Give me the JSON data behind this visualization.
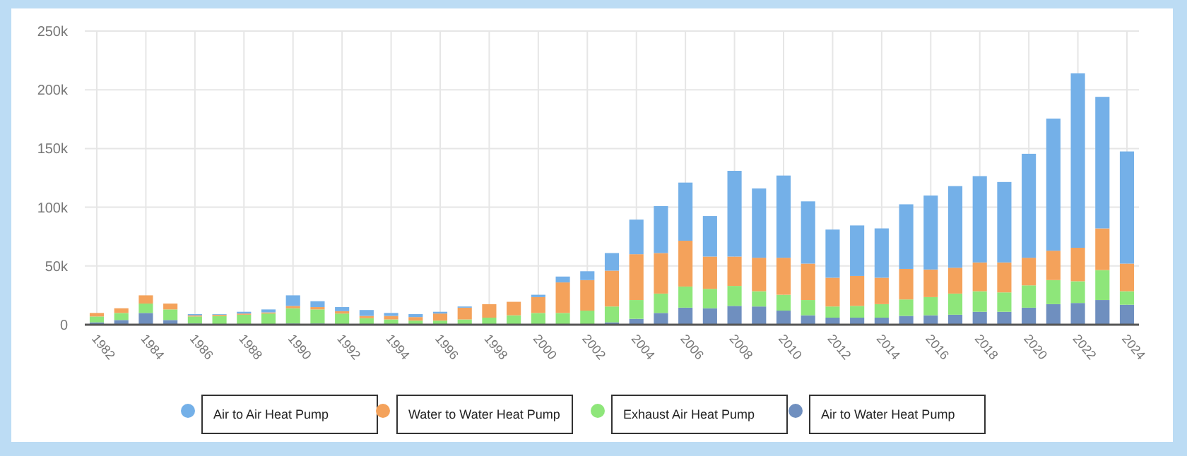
{
  "chart_data": {
    "type": "bar",
    "stacked": true,
    "categories": [
      "1982",
      null,
      "1984",
      null,
      "1986",
      null,
      "1988",
      null,
      "1990",
      null,
      "1992",
      null,
      "1994",
      null,
      "1996",
      null,
      "1998",
      null,
      "2000",
      null,
      "2002",
      null,
      "2004",
      null,
      "2006",
      null,
      "2008",
      null,
      "2010",
      null,
      "2012",
      null,
      "2014",
      null,
      "2016",
      null,
      "2018",
      null,
      "2020",
      null,
      "2022",
      null,
      "2024"
    ],
    "series": [
      {
        "name": "Air to Water Heat Pump",
        "color": "#6f8fbf",
        "values": [
          2000,
          4000,
          10000,
          4000,
          1000,
          500,
          500,
          500,
          1000,
          1000,
          500,
          500,
          500,
          500,
          500,
          500,
          500,
          500,
          500,
          500,
          500,
          2000,
          5000,
          10000,
          14500,
          14000,
          16000,
          15500,
          12000,
          8000,
          6000,
          6000,
          6000,
          7500,
          8000,
          8500,
          11000,
          11000,
          14500,
          17500,
          18500,
          21000,
          17000
        ]
      },
      {
        "name": "Exhaust Air Heat Pump",
        "color": "#8ee67a",
        "values": [
          5000,
          6000,
          8000,
          9000,
          6000,
          7000,
          8000,
          9000,
          13000,
          12000,
          9000,
          5000,
          4000,
          3000,
          3000,
          4000,
          5500,
          7500,
          9500,
          9500,
          11500,
          13500,
          16000,
          16500,
          18000,
          16500,
          17000,
          13000,
          13500,
          13000,
          9500,
          10000,
          11500,
          14000,
          15500,
          18000,
          17500,
          16500,
          19000,
          20500,
          18500,
          25500,
          11500
        ]
      },
      {
        "name": "Water to Water Heat Pump",
        "color": "#f4a25b",
        "values": [
          3000,
          4000,
          7000,
          5000,
          1000,
          1000,
          1000,
          1000,
          2000,
          2000,
          2000,
          2000,
          3000,
          3000,
          6000,
          10000,
          11500,
          11500,
          13500,
          26000,
          26000,
          30500,
          39000,
          34500,
          39000,
          27500,
          25000,
          28500,
          31500,
          31000,
          24500,
          25500,
          22500,
          26000,
          23500,
          22000,
          24500,
          25500,
          23500,
          25000,
          28500,
          35500,
          23500
        ]
      },
      {
        "name": "Air to Air Heat Pump",
        "color": "#74b0e8",
        "values": [
          0,
          0,
          0,
          0,
          1000,
          500,
          1500,
          2500,
          9000,
          5000,
          3500,
          5000,
          2500,
          2500,
          1500,
          1000,
          0,
          0,
          2000,
          5000,
          7500,
          15000,
          29500,
          40000,
          49500,
          34500,
          73000,
          59000,
          70000,
          53000,
          41000,
          43000,
          42000,
          55000,
          63000,
          69500,
          73500,
          68500,
          88500,
          112500,
          148500,
          112000,
          95500
        ]
      }
    ],
    "ylim": [
      0,
      250000
    ],
    "yticks": [
      {
        "value": 0,
        "label": "0"
      },
      {
        "value": 50000,
        "label": "50k"
      },
      {
        "value": 100000,
        "label": "100k"
      },
      {
        "value": 150000,
        "label": "150k"
      },
      {
        "value": 200000,
        "label": "200k"
      },
      {
        "value": 250000,
        "label": "250k"
      }
    ],
    "grid": true,
    "legend": "bottom"
  }
}
